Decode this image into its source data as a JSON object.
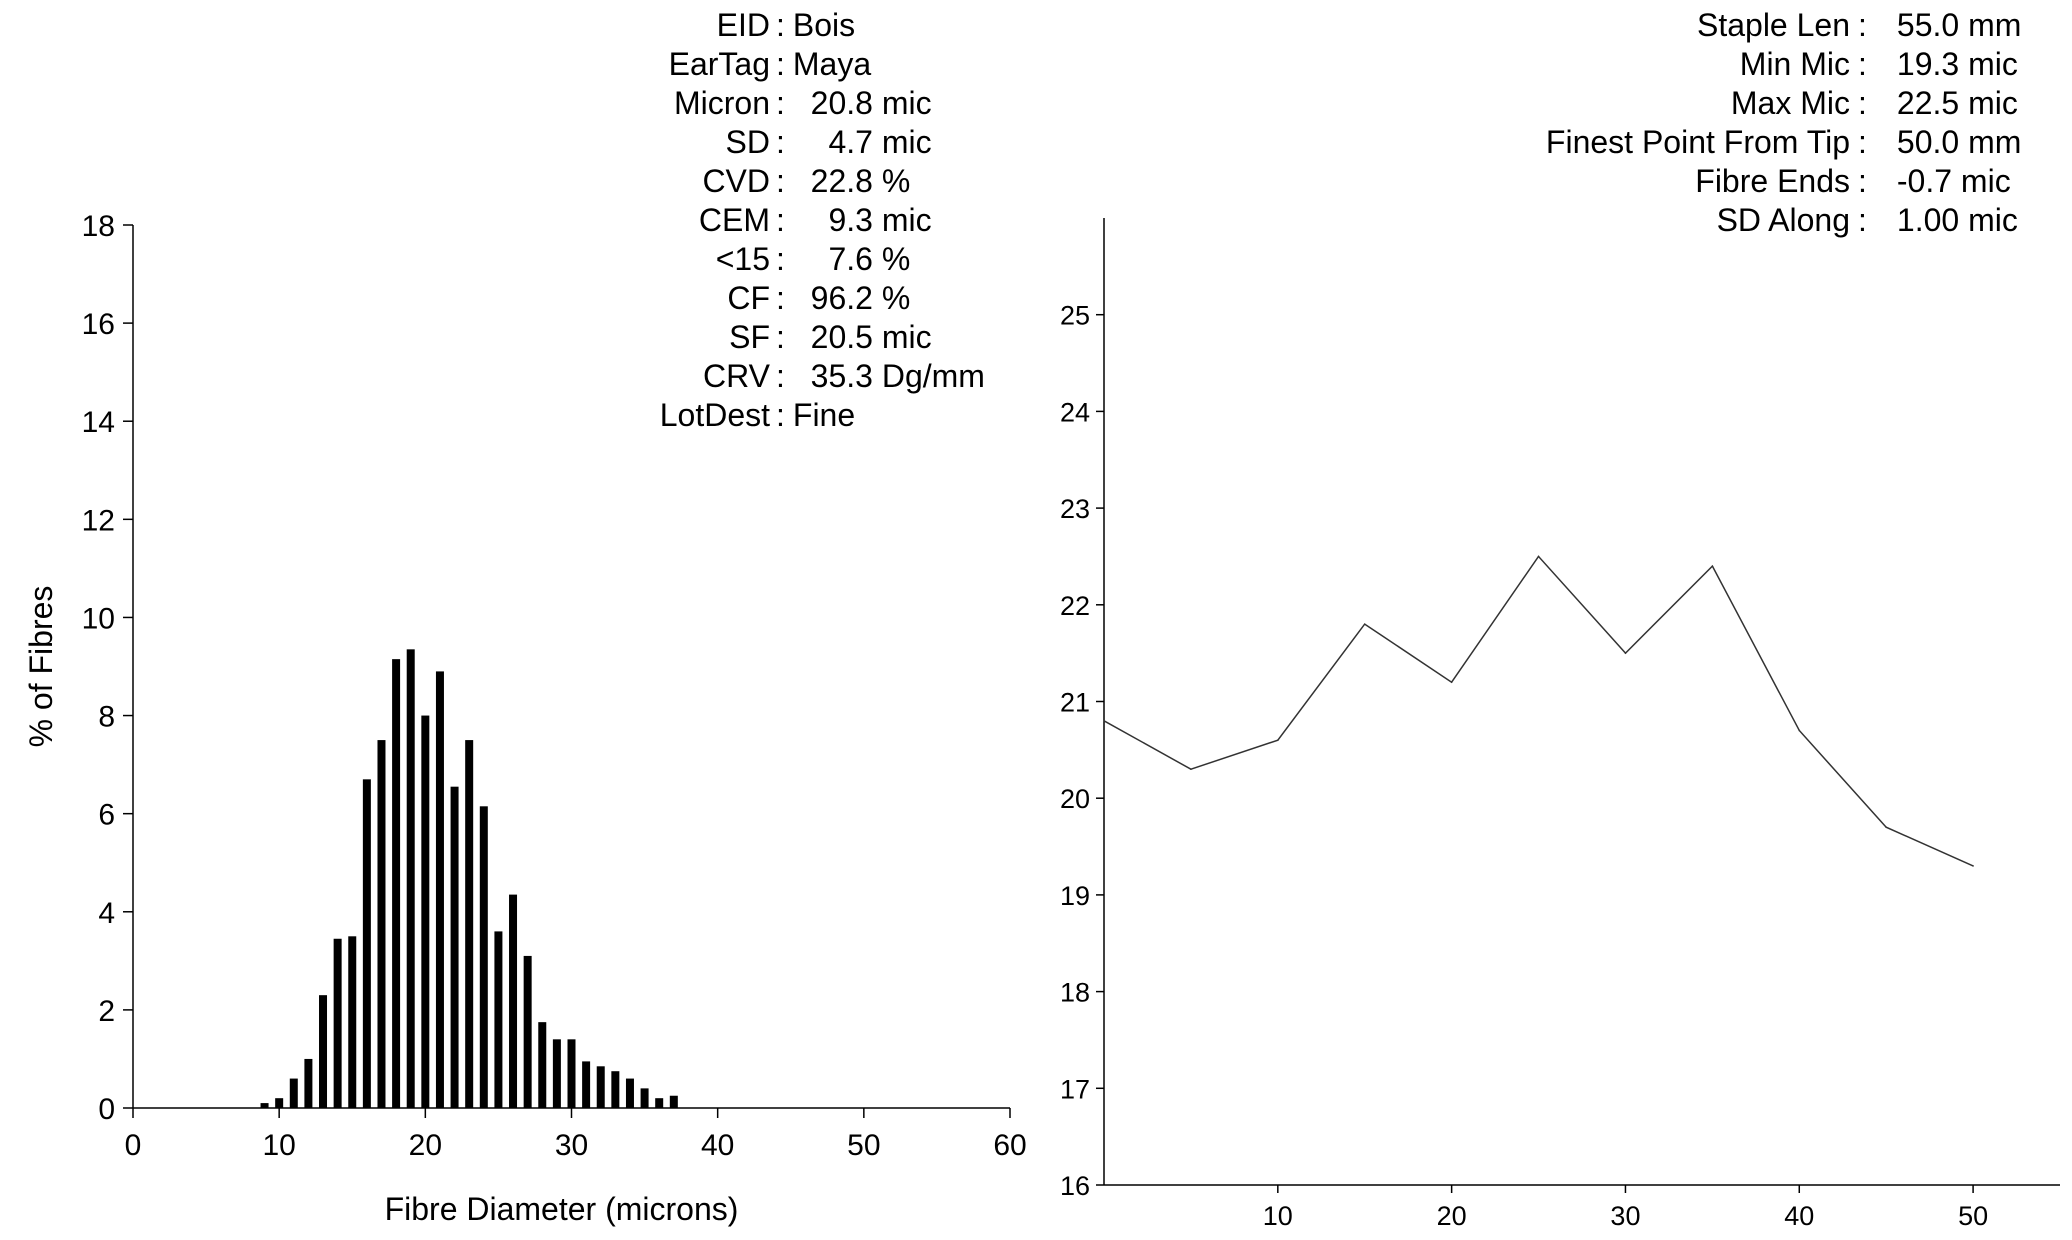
{
  "summary_left": [
    {
      "label": "EID",
      "value": "Bois"
    },
    {
      "label": "EarTag",
      "value": "Maya"
    },
    {
      "label": "Micron",
      "value": "  20.8 mic"
    },
    {
      "label": "SD",
      "value": "    4.7 mic"
    },
    {
      "label": "CVD",
      "value": "  22.8 %"
    },
    {
      "label": "CEM",
      "value": "    9.3 mic"
    },
    {
      "label": "<15",
      "value": "    7.6 %"
    },
    {
      "label": "CF",
      "value": "  96.2 %"
    },
    {
      "label": "SF",
      "value": "  20.5 mic"
    },
    {
      "label": "CRV",
      "value": "  35.3 Dg/mm"
    },
    {
      "label": "LotDest",
      "value": "Fine"
    }
  ],
  "summary_right": [
    {
      "label": "Staple Len",
      "value": "55.0 mm"
    },
    {
      "label": "Min Mic",
      "value": "19.3 mic"
    },
    {
      "label": "Max Mic",
      "value": "22.5 mic"
    },
    {
      "label": "Finest Point From Tip",
      "value": "50.0 mm"
    },
    {
      "label": "Fibre Ends",
      "value": "-0.7 mic"
    },
    {
      "label": "SD Along",
      "value": "1.00 mic"
    }
  ],
  "chart_data": [
    {
      "type": "bar",
      "title": "",
      "xlabel": "Fibre Diameter (microns)",
      "ylabel": "% of Fibres",
      "xlim": [
        0,
        60
      ],
      "ylim": [
        0,
        18
      ],
      "xticks": [
        0,
        10,
        20,
        30,
        40,
        50,
        60
      ],
      "yticks": [
        0,
        2,
        4,
        6,
        8,
        10,
        12,
        14,
        16,
        18
      ],
      "grid": false,
      "x": [
        9,
        10,
        11,
        12,
        13,
        14,
        15,
        16,
        17,
        18,
        19,
        20,
        21,
        22,
        23,
        24,
        25,
        26,
        27,
        28,
        29,
        30,
        31,
        32,
        33,
        34,
        35,
        36,
        37
      ],
      "values": [
        0.1,
        0.2,
        0.6,
        1.0,
        2.3,
        3.45,
        3.5,
        6.7,
        7.5,
        9.15,
        9.35,
        8.0,
        8.9,
        6.55,
        7.5,
        6.15,
        3.6,
        4.35,
        3.1,
        1.75,
        1.4,
        1.4,
        0.95,
        0.85,
        0.75,
        0.6,
        0.4,
        0.2,
        0.25
      ],
      "color": "#000000"
    },
    {
      "type": "line",
      "title": "",
      "xlabel": "",
      "ylabel": "",
      "xlim": [
        0,
        55
      ],
      "ylim": [
        16,
        26
      ],
      "xticks": [
        10,
        20,
        30,
        40,
        50
      ],
      "yticks": [
        16,
        17,
        18,
        19,
        20,
        21,
        22,
        23,
        24,
        25
      ],
      "grid": false,
      "x": [
        0,
        5,
        10,
        15,
        20,
        25,
        30,
        35,
        40,
        45,
        50
      ],
      "y": [
        20.8,
        20.3,
        20.6,
        21.8,
        21.2,
        22.5,
        21.5,
        22.4,
        20.7,
        19.7,
        19.3
      ],
      "color": "#333333"
    }
  ]
}
